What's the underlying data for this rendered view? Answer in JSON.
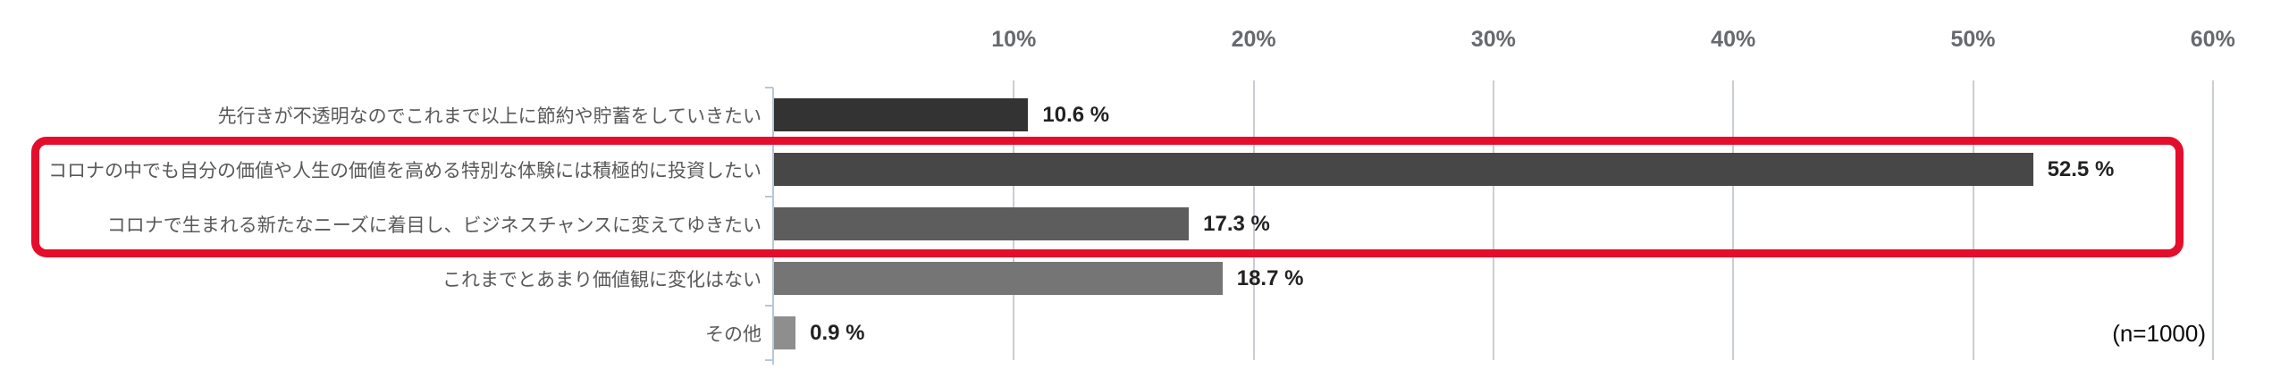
{
  "chart_data": {
    "type": "bar",
    "orientation": "horizontal",
    "title": "",
    "categories": [
      "先行きが不透明なのでこれまで以上に節約や貯蓄をしていきたい",
      "コロナの中でも自分の価値や人生の価値を高める特別な体験には積極的に投資したい",
      "コロナで生まれる新たなニーズに着目し、ビジネスチャンスに変えてゆきたい",
      "これまでとあまり価値観に変化はない",
      "その他"
    ],
    "values": [
      10.6,
      52.5,
      17.3,
      18.7,
      0.9
    ],
    "value_labels": [
      "10.6 %",
      "52.5 %",
      "17.3 %",
      "18.7 %",
      "0.9 %"
    ],
    "bar_colors": [
      "#333333",
      "#474747",
      "#5d5d5d",
      "#757575",
      "#8e8e8e"
    ],
    "xlim": [
      0,
      60
    ],
    "x_ticks": [
      "10%",
      "20%",
      "30%",
      "40%",
      "50%",
      "60%"
    ],
    "x_tick_values": [
      10,
      20,
      30,
      40,
      50,
      60
    ],
    "grid": true,
    "legend": null,
    "annotation": "(n=1000)",
    "highlight": {
      "rows": [
        1,
        2
      ],
      "color": "#e50d2c"
    }
  },
  "colors": {
    "axis_line": "#b7c8d6",
    "gridline": "#c9ced4",
    "category_label": "#595959",
    "tick_label": "#666a6e",
    "value_label": "#222222",
    "highlight": "#e50d2c"
  }
}
